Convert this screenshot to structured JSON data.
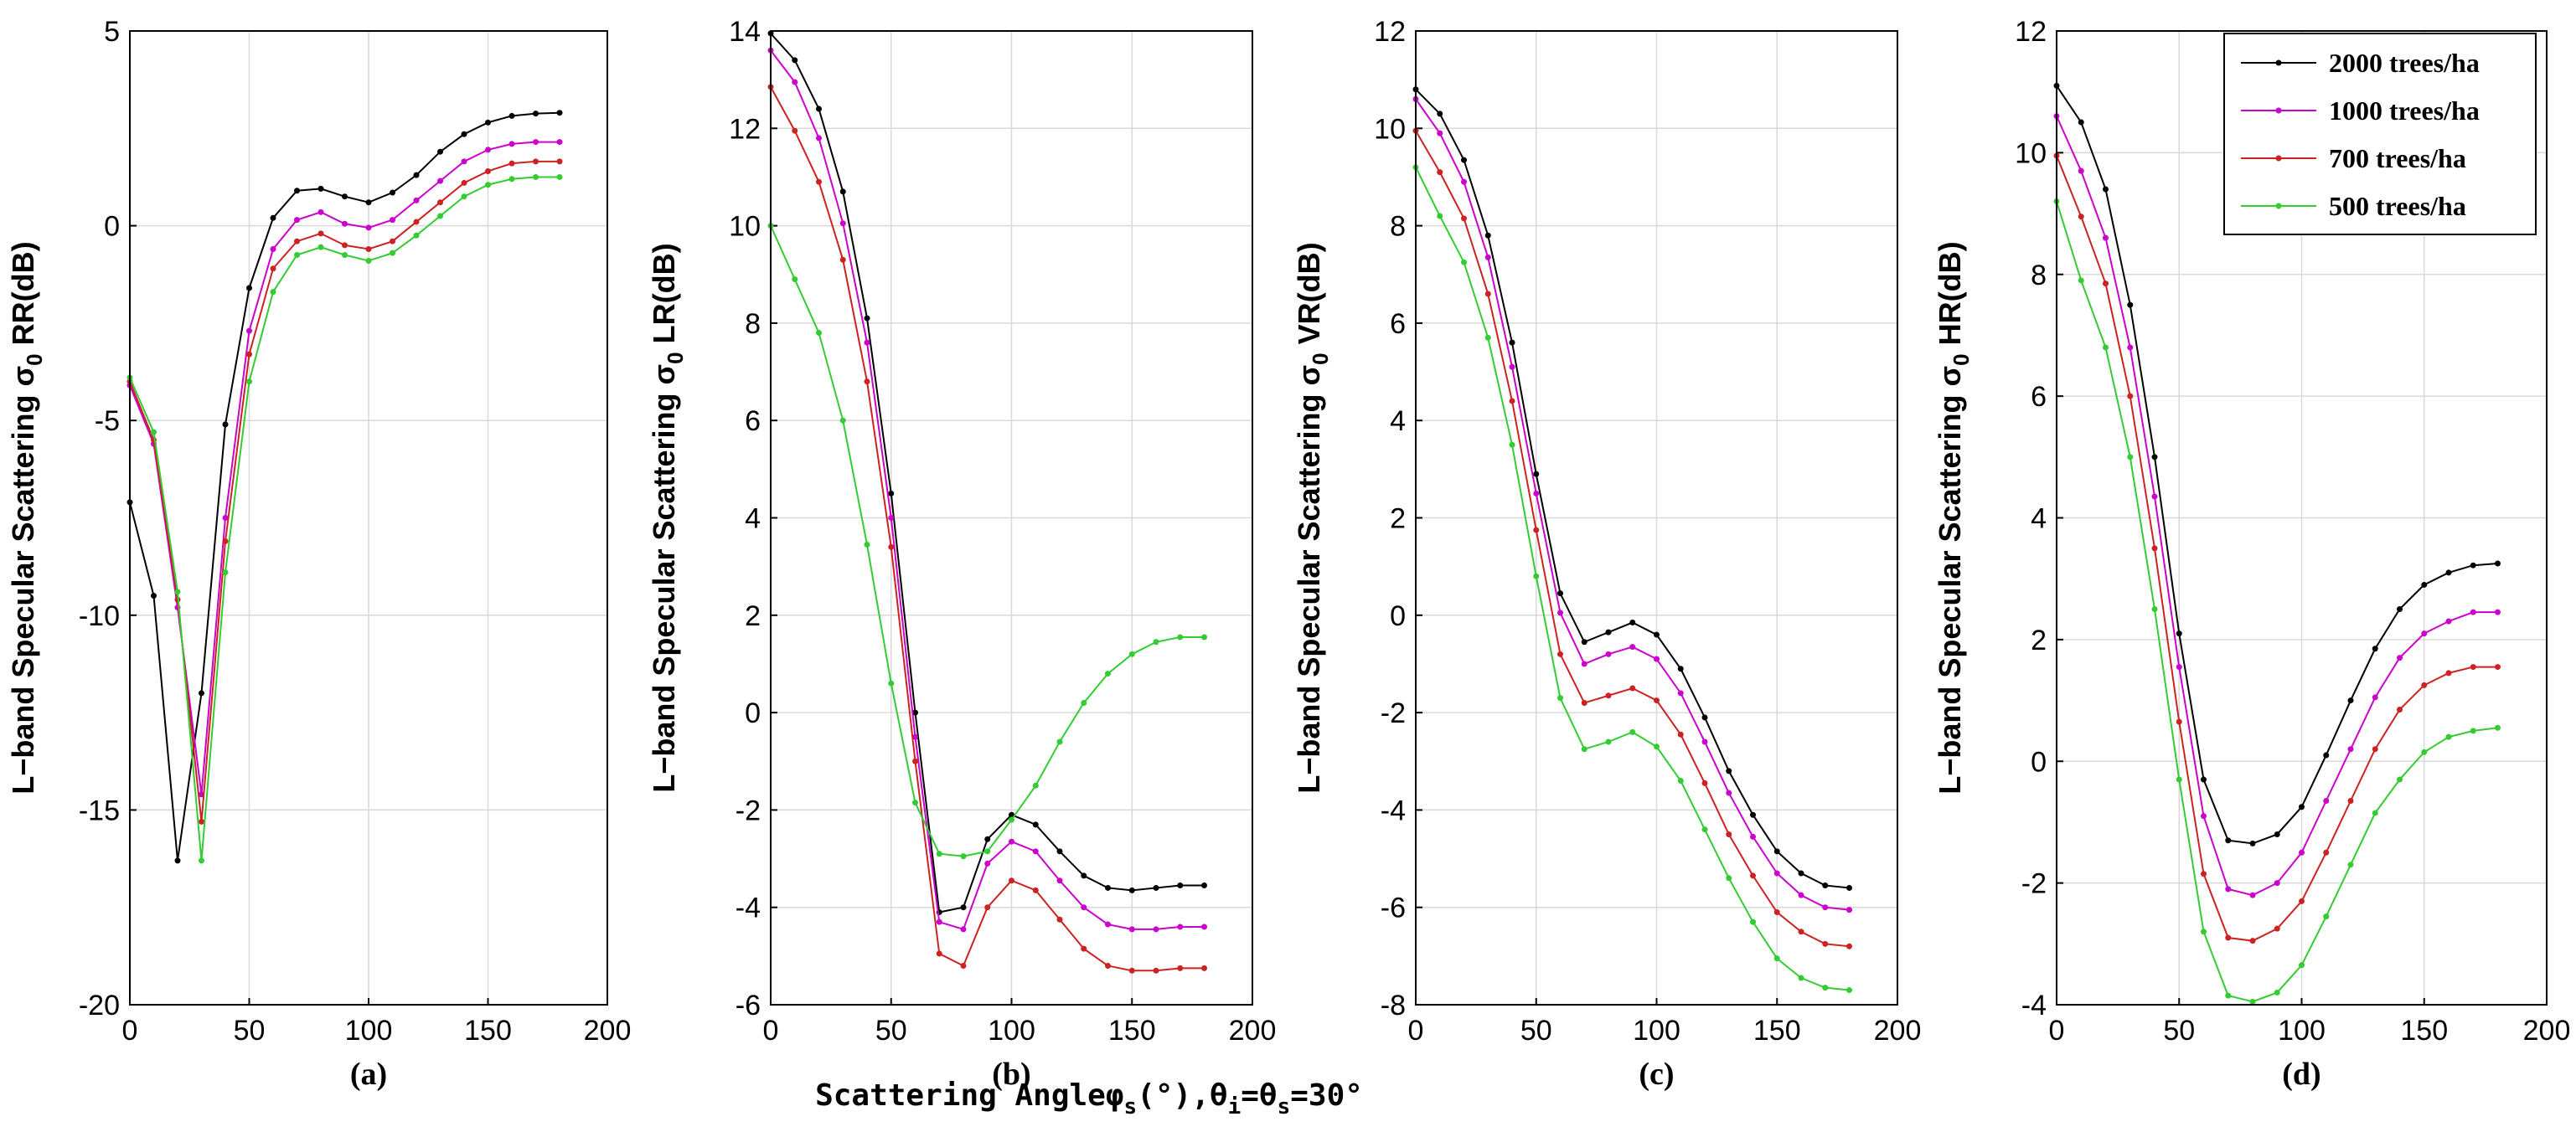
{
  "chart_data": [
    {
      "type": "line",
      "panel_label": "(a)",
      "ylabel_main": "L−band Specular Scattering σ",
      "ylabel_sub": "0",
      "ylabel_tail": " RR(dB)",
      "xlim": [
        0,
        200
      ],
      "ylim": [
        -20,
        5
      ],
      "xticks": [
        "0",
        "50",
        "100",
        "150",
        "200"
      ],
      "yticks": [
        "-20",
        "-15",
        "-10",
        "-5",
        "0",
        "5"
      ],
      "x": [
        0,
        10,
        20,
        30,
        40,
        50,
        60,
        70,
        80,
        90,
        100,
        110,
        120,
        130,
        140,
        150,
        160,
        170,
        180
      ],
      "series": [
        {
          "name": "2000 trees/ha",
          "color": "#000000",
          "values": [
            -7.1,
            -9.5,
            -16.3,
            -12,
            -5.1,
            -1.6,
            0.2,
            0.9,
            0.95,
            0.75,
            0.6,
            0.85,
            1.3,
            1.9,
            2.35,
            2.65,
            2.82,
            2.88,
            2.9
          ]
        },
        {
          "name": "1000 trees/ha",
          "color": "#cc00cc",
          "values": [
            -4.1,
            -5.6,
            -9.8,
            -14.6,
            -7.5,
            -2.7,
            -0.6,
            0.15,
            0.35,
            0.05,
            -0.05,
            0.15,
            0.65,
            1.15,
            1.65,
            1.95,
            2.1,
            2.15,
            2.15
          ]
        },
        {
          "name": "700 trees/ha",
          "color": "#cc2222",
          "values": [
            -4.0,
            -5.5,
            -9.6,
            -15.3,
            -8.1,
            -3.3,
            -1.1,
            -0.4,
            -0.2,
            -0.5,
            -0.6,
            -0.4,
            0.1,
            0.6,
            1.1,
            1.4,
            1.6,
            1.65,
            1.65
          ]
        },
        {
          "name": "500 trees/ha",
          "color": "#33cc33",
          "values": [
            -3.9,
            -5.3,
            -9.4,
            -16.3,
            -8.9,
            -4.0,
            -1.7,
            -0.75,
            -0.55,
            -0.75,
            -0.9,
            -0.7,
            -0.25,
            0.25,
            0.75,
            1.05,
            1.2,
            1.25,
            1.25
          ]
        }
      ]
    },
    {
      "type": "line",
      "panel_label": "(b)",
      "ylabel_main": "L−band Specular Scattering σ",
      "ylabel_sub": "0",
      "ylabel_tail": " LR(dB)",
      "xlim": [
        0,
        200
      ],
      "ylim": [
        -6,
        14
      ],
      "xticks": [
        "0",
        "50",
        "100",
        "150",
        "200"
      ],
      "yticks": [
        "-6",
        "-4",
        "-2",
        "0",
        "2",
        "4",
        "6",
        "8",
        "10",
        "12",
        "14"
      ],
      "x": [
        0,
        10,
        20,
        30,
        40,
        50,
        60,
        70,
        80,
        90,
        100,
        110,
        120,
        130,
        140,
        150,
        160,
        170,
        180
      ],
      "series": [
        {
          "name": "2000 trees/ha",
          "color": "#000000",
          "values": [
            13.95,
            13.4,
            12.4,
            10.7,
            8.1,
            4.5,
            0.0,
            -4.1,
            -4.0,
            -2.6,
            -2.1,
            -2.3,
            -2.85,
            -3.35,
            -3.6,
            -3.65,
            -3.6,
            -3.55,
            -3.55
          ]
        },
        {
          "name": "1000 trees/ha",
          "color": "#cc00cc",
          "values": [
            13.6,
            12.95,
            11.8,
            10.05,
            7.6,
            4.0,
            -0.5,
            -4.3,
            -4.45,
            -3.1,
            -2.65,
            -2.85,
            -3.45,
            -4.0,
            -4.35,
            -4.45,
            -4.45,
            -4.4,
            -4.4
          ]
        },
        {
          "name": "700 trees/ha",
          "color": "#cc2222",
          "values": [
            12.85,
            11.95,
            10.9,
            9.3,
            6.8,
            3.4,
            -1.0,
            -4.95,
            -5.2,
            -4.0,
            -3.45,
            -3.65,
            -4.25,
            -4.85,
            -5.2,
            -5.3,
            -5.3,
            -5.25,
            -5.25
          ]
        },
        {
          "name": "500 trees/ha",
          "color": "#33cc33",
          "values": [
            10.0,
            8.9,
            7.8,
            6.0,
            3.45,
            0.6,
            -1.85,
            -2.9,
            -2.95,
            -2.85,
            -2.2,
            -1.5,
            -0.6,
            0.2,
            0.8,
            1.2,
            1.45,
            1.55,
            1.55
          ]
        }
      ]
    },
    {
      "type": "line",
      "panel_label": "(c)",
      "ylabel_main": "L−band Specular Scattering σ",
      "ylabel_sub": "0",
      "ylabel_tail": " VR(dB)",
      "xlim": [
        0,
        200
      ],
      "ylim": [
        -8,
        12
      ],
      "xticks": [
        "0",
        "50",
        "100",
        "150",
        "200"
      ],
      "yticks": [
        "-8",
        "-6",
        "-4",
        "-2",
        "0",
        "2",
        "4",
        "6",
        "8",
        "10",
        "12"
      ],
      "x": [
        0,
        10,
        20,
        30,
        40,
        50,
        60,
        70,
        80,
        90,
        100,
        110,
        120,
        130,
        140,
        150,
        160,
        170,
        180
      ],
      "series": [
        {
          "name": "2000 trees/ha",
          "color": "#000000",
          "values": [
            10.8,
            10.3,
            9.35,
            7.8,
            5.6,
            2.9,
            0.45,
            -0.55,
            -0.35,
            -0.15,
            -0.4,
            -1.1,
            -2.1,
            -3.2,
            -4.1,
            -4.85,
            -5.3,
            -5.55,
            -5.6
          ]
        },
        {
          "name": "1000 trees/ha",
          "color": "#cc00cc",
          "values": [
            10.6,
            9.9,
            8.9,
            7.35,
            5.1,
            2.5,
            0.05,
            -1.0,
            -0.8,
            -0.65,
            -0.9,
            -1.6,
            -2.6,
            -3.65,
            -4.55,
            -5.3,
            -5.75,
            -6.0,
            -6.05
          ]
        },
        {
          "name": "700 trees/ha",
          "color": "#cc2222",
          "values": [
            9.95,
            9.1,
            8.15,
            6.6,
            4.4,
            1.75,
            -0.8,
            -1.8,
            -1.65,
            -1.5,
            -1.75,
            -2.45,
            -3.45,
            -4.5,
            -5.35,
            -6.1,
            -6.5,
            -6.75,
            -6.8
          ]
        },
        {
          "name": "500 trees/ha",
          "color": "#33cc33",
          "values": [
            9.2,
            8.2,
            7.25,
            5.7,
            3.5,
            0.8,
            -1.7,
            -2.75,
            -2.6,
            -2.4,
            -2.7,
            -3.4,
            -4.4,
            -5.4,
            -6.3,
            -7.05,
            -7.45,
            -7.65,
            -7.7
          ]
        }
      ]
    },
    {
      "type": "line",
      "panel_label": "(d)",
      "ylabel_main": "L−band Specular Scattering σ",
      "ylabel_sub": "0",
      "ylabel_tail": " HR(dB)",
      "xlim": [
        0,
        200
      ],
      "ylim": [
        -4,
        12
      ],
      "xticks": [
        "0",
        "50",
        "100",
        "150",
        "200"
      ],
      "yticks": [
        "-4",
        "-2",
        "0",
        "2",
        "4",
        "6",
        "8",
        "10",
        "12"
      ],
      "x": [
        0,
        10,
        20,
        30,
        40,
        50,
        60,
        70,
        80,
        90,
        100,
        110,
        120,
        130,
        140,
        150,
        160,
        170,
        180
      ],
      "series": [
        {
          "name": "2000 trees/ha",
          "color": "#000000",
          "values": [
            11.1,
            10.5,
            9.4,
            7.5,
            5.0,
            2.1,
            -0.3,
            -1.3,
            -1.35,
            -1.2,
            -0.75,
            0.1,
            1.0,
            1.85,
            2.5,
            2.9,
            3.1,
            3.22,
            3.25
          ]
        },
        {
          "name": "1000 trees/ha",
          "color": "#cc00cc",
          "values": [
            10.6,
            9.7,
            8.6,
            6.8,
            4.35,
            1.55,
            -0.9,
            -2.1,
            -2.2,
            -2.0,
            -1.5,
            -0.65,
            0.2,
            1.05,
            1.7,
            2.1,
            2.3,
            2.45,
            2.45
          ]
        },
        {
          "name": "700 trees/ha",
          "color": "#cc2222",
          "values": [
            9.95,
            8.95,
            7.85,
            6.0,
            3.5,
            0.65,
            -1.85,
            -2.9,
            -2.95,
            -2.75,
            -2.3,
            -1.5,
            -0.65,
            0.2,
            0.85,
            1.25,
            1.45,
            1.55,
            1.55
          ]
        },
        {
          "name": "500 trees/ha",
          "color": "#33cc33",
          "values": [
            9.2,
            7.9,
            6.8,
            5.0,
            2.5,
            -0.3,
            -2.8,
            -3.85,
            -3.95,
            -3.8,
            -3.35,
            -2.55,
            -1.7,
            -0.85,
            -0.3,
            0.15,
            0.4,
            0.5,
            0.55
          ]
        }
      ]
    }
  ],
  "shared_xlabel": {
    "main": "Scattering Angleφ",
    "sub1": "s",
    "mid1": "(°),θ",
    "sub2": "i",
    "mid2": "=θ",
    "sub3": "s",
    "tail": "=30°"
  },
  "legend": [
    "2000 trees/ha",
    "1000 trees/ha",
    "700 trees/ha",
    "500 trees/ha"
  ]
}
